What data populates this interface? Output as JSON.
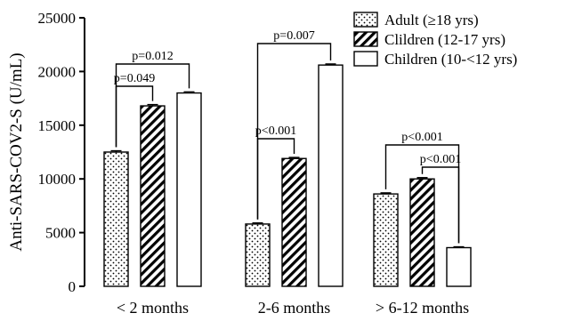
{
  "chart_data": {
    "type": "bar",
    "ylabel": "Anti-SARS-COV2-S (U/mL)",
    "ylim": [
      0,
      25000
    ],
    "yticks": [
      0,
      5000,
      10000,
      15000,
      20000,
      25000
    ],
    "categories": [
      "< 2 months",
      "2-6 months",
      "> 6-12 months"
    ],
    "series": [
      {
        "name": "Adult (≥18 yrs)",
        "pattern": "dots",
        "values": [
          12500,
          5800,
          8600
        ],
        "errors": [
          120,
          100,
          100
        ]
      },
      {
        "name": "Clildren (12-17 yrs)",
        "pattern": "hatch",
        "values": [
          16800,
          11900,
          10000
        ],
        "errors": [
          120,
          100,
          120
        ]
      },
      {
        "name": "Children (10-<12 yrs)",
        "pattern": "empty",
        "values": [
          18000,
          20600,
          3600
        ],
        "errors": [
          100,
          100,
          80
        ]
      }
    ],
    "legend_position": "top-right",
    "grid": false,
    "annotations": [
      {
        "category": 0,
        "from": 0,
        "to": 1,
        "text": "p=0.049"
      },
      {
        "category": 0,
        "from": 0,
        "to": 2,
        "text": "p=0.012"
      },
      {
        "category": 1,
        "from": 0,
        "to": 1,
        "text": "p<0.001"
      },
      {
        "category": 1,
        "from": 0,
        "to": 2,
        "text": "p=0.007"
      },
      {
        "category": 2,
        "from": 0,
        "to": 2,
        "text": "p<0.001"
      },
      {
        "category": 2,
        "from": 1,
        "to": 2,
        "text": "p<0.001"
      }
    ]
  }
}
